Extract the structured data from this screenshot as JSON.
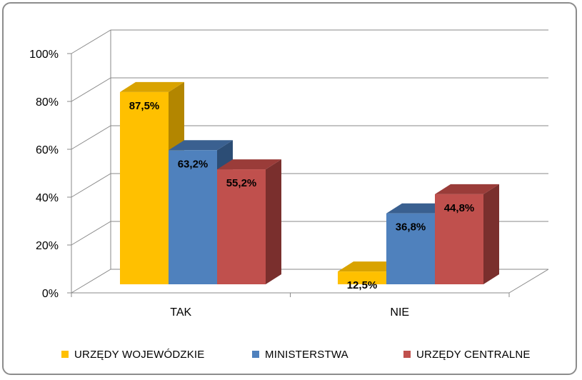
{
  "chart_data": {
    "type": "bar",
    "categories": [
      "TAK",
      "NIE"
    ],
    "series": [
      {
        "name": "URZĘDY WOJEWÓDZKIE",
        "values": [
          87.5,
          12.5
        ],
        "labels": [
          "87,5%",
          "12,5%"
        ],
        "color": "#FFC000",
        "side": "#B38600",
        "top": "#D9A300"
      },
      {
        "name": "MINISTERSTWA",
        "values": [
          63.2,
          36.8
        ],
        "labels": [
          "63,2%",
          "36,8%"
        ],
        "color": "#4F81BD",
        "side": "#2C4D75",
        "top": "#3A6090"
      },
      {
        "name": "URZĘDY CENTRALNE",
        "values": [
          55.2,
          44.8
        ],
        "labels": [
          "55,2%",
          "44,8%"
        ],
        "color": "#C0504D",
        "side": "#7A2F2D",
        "top": "#9A3C39"
      }
    ],
    "y_ticks": [
      "0%",
      "20%",
      "40%",
      "60%",
      "80%",
      "100%"
    ],
    "ylim": [
      0,
      100
    ],
    "grid": true,
    "legend_position": "bottom",
    "title": "",
    "xlabel": "",
    "ylabel": ""
  }
}
